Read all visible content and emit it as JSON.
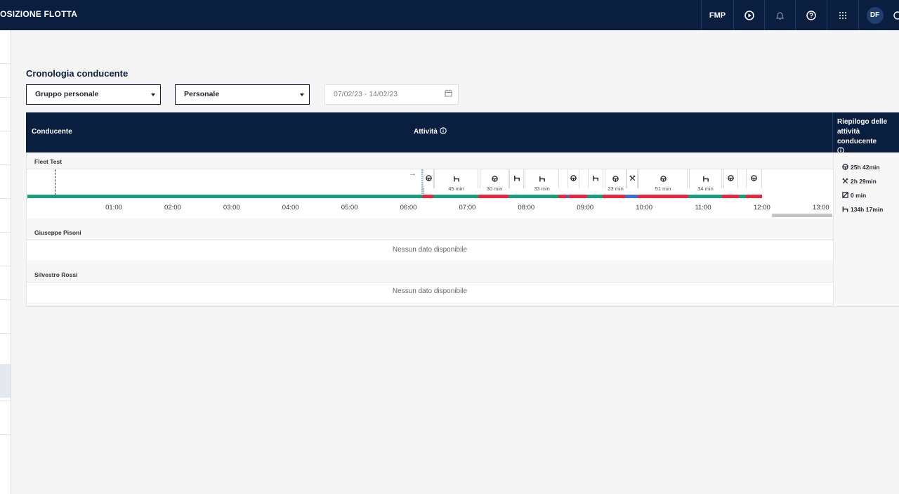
{
  "header": {
    "app_title": "OSIZIONE FLOTTA",
    "fmp_label": "FMP",
    "avatar_initials": "DF",
    "icons": [
      "play-circle-icon",
      "bell-icon",
      "help-circle-icon",
      "apps-grid-icon",
      "user-avatar",
      "settings-icon"
    ]
  },
  "page": {
    "title": "Cronologia conducente",
    "filters": {
      "group_select": "Gruppo personale",
      "person_select": "Personale",
      "date_range": "07/02/23 - 14/02/23"
    }
  },
  "table": {
    "columns": {
      "driver": "Conducente",
      "activity": "Attività",
      "summary": "Riepilogo delle attività conducente"
    },
    "drivers": [
      {
        "name": "Fleet Test"
      },
      {
        "name": "Giuseppe Pisoni",
        "no_data": "Nessun dato disponibile"
      },
      {
        "name": "Silvestro Rossi",
        "no_data": "Nessun dato disponibile"
      }
    ],
    "timeline_ticks": [
      "01:00",
      "02:00",
      "03:00",
      "04:00",
      "05:00",
      "06:00",
      "07:00",
      "08:00",
      "09:00",
      "10:00",
      "11:00",
      "12:00",
      "13:00"
    ],
    "activity_segments": [
      {
        "type": "drive",
        "label": ""
      },
      {
        "type": "rest",
        "label": "45 min"
      },
      {
        "type": "drive",
        "label": "30 min"
      },
      {
        "type": "rest",
        "label": ""
      },
      {
        "type": "rest",
        "label": "33 min"
      },
      {
        "type": "drive",
        "label": ""
      },
      {
        "type": "rest",
        "label": ""
      },
      {
        "type": "drive",
        "label": "23 min"
      },
      {
        "type": "work",
        "label": ""
      },
      {
        "type": "drive",
        "label": "51 min"
      },
      {
        "type": "rest",
        "label": "34 min"
      },
      {
        "type": "drive",
        "label": ""
      },
      {
        "type": "drive",
        "label": ""
      }
    ],
    "summary": {
      "drive": "25h 42min",
      "work": "2h 29min",
      "available": "0 min",
      "rest": "134h 17min"
    }
  },
  "colors": {
    "navy": "#0a1e3f",
    "drive_green": "#1a9e7a",
    "infraction_red": "#e8283c",
    "work_blue": "#3a6fd8"
  }
}
